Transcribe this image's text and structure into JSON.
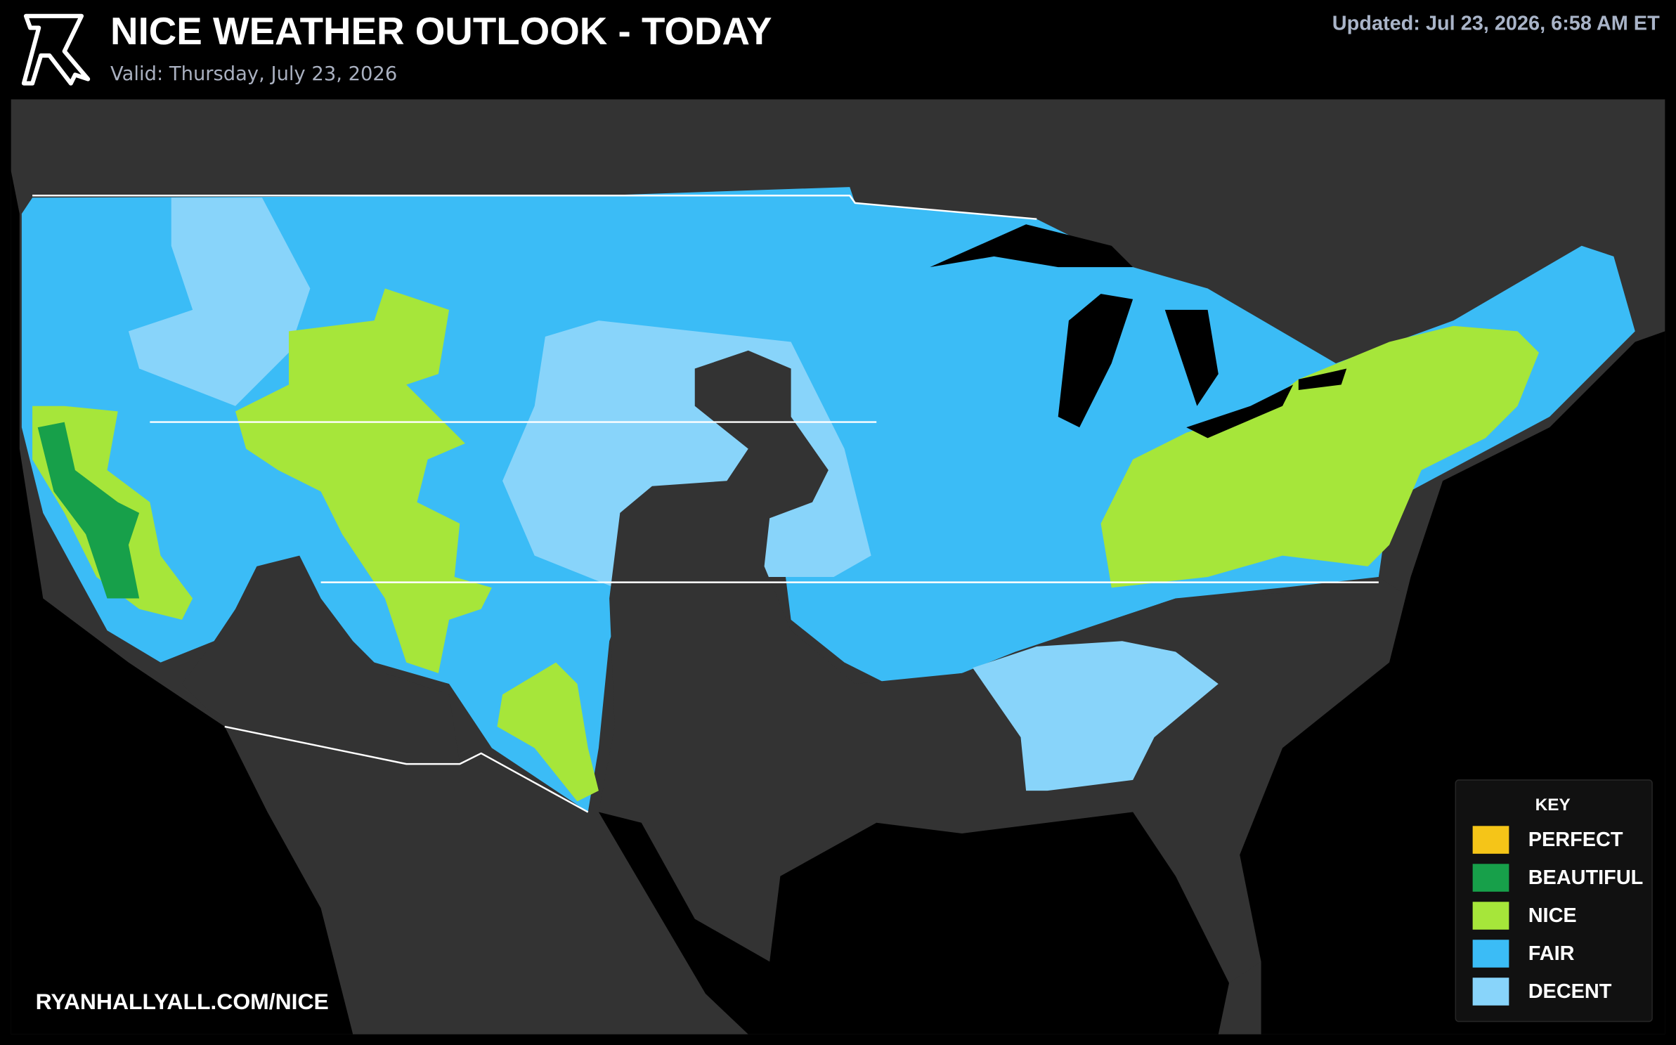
{
  "header": {
    "title": "NICE WEATHER OUTLOOK - TODAY",
    "subtitle": "Valid: Thursday, July 23, 2026",
    "updated": "Updated: Jul 23, 2026, 6:58 AM ET"
  },
  "legend": {
    "title": "KEY",
    "items": [
      {
        "label": "PERFECT",
        "color": "#f5c518"
      },
      {
        "label": "BEAUTIFUL",
        "color": "#17a04a"
      },
      {
        "label": "NICE",
        "color": "#a6e63a"
      },
      {
        "label": "FAIR",
        "color": "#3bbcf6"
      },
      {
        "label": "DECENT",
        "color": "#88d4fa"
      }
    ]
  },
  "footer": "RYANHALLYALL.COM/NICE"
}
